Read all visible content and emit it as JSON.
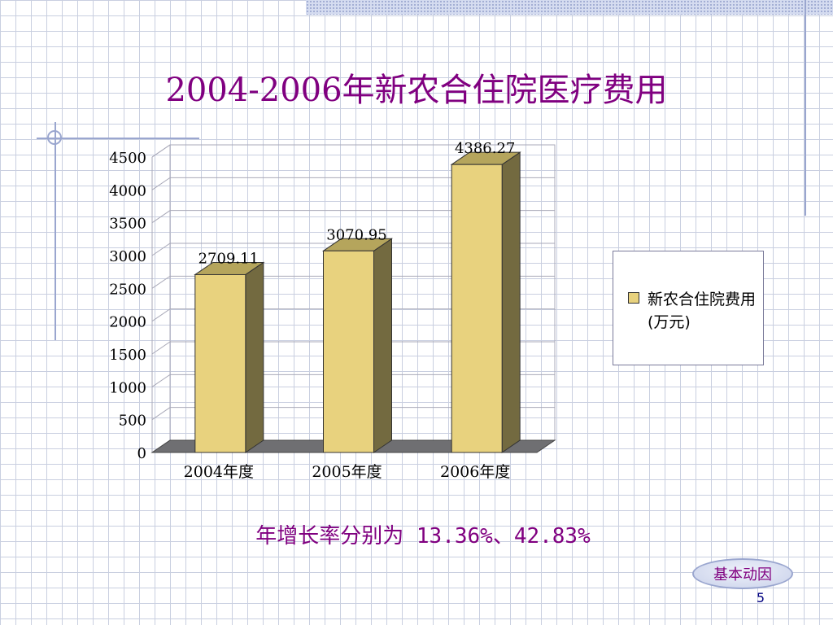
{
  "slide": {
    "title": "2004-2006年新农合住院医疗费用",
    "growth_note": "年增长率分别为 13.36%、42.83%",
    "nav_button_label": "基本动因",
    "slide_number": "5"
  },
  "colors": {
    "title": "#800080",
    "bar_front": "#e8d27e",
    "bar_side": "#736a40",
    "bar_top": "#b5a55c",
    "floor": "#6f6f72",
    "grid": "#a9a9b8",
    "legend_border": "#7a7a9a"
  },
  "chart_data": {
    "type": "bar",
    "categories": [
      "2004年度",
      "2005年度",
      "2006年度"
    ],
    "series": [
      {
        "name": "新农合住院费用(万元)",
        "values": [
          2709.11,
          3070.95,
          4386.27
        ],
        "labels": [
          "2709.11",
          "3070.95",
          "4386.27"
        ]
      }
    ],
    "ylim": [
      0,
      4500
    ],
    "yticks": [
      0,
      500,
      1000,
      1500,
      2000,
      2500,
      3000,
      3500,
      4000,
      4500
    ],
    "grid": true,
    "legend_position": "right",
    "style": "3d-column"
  }
}
